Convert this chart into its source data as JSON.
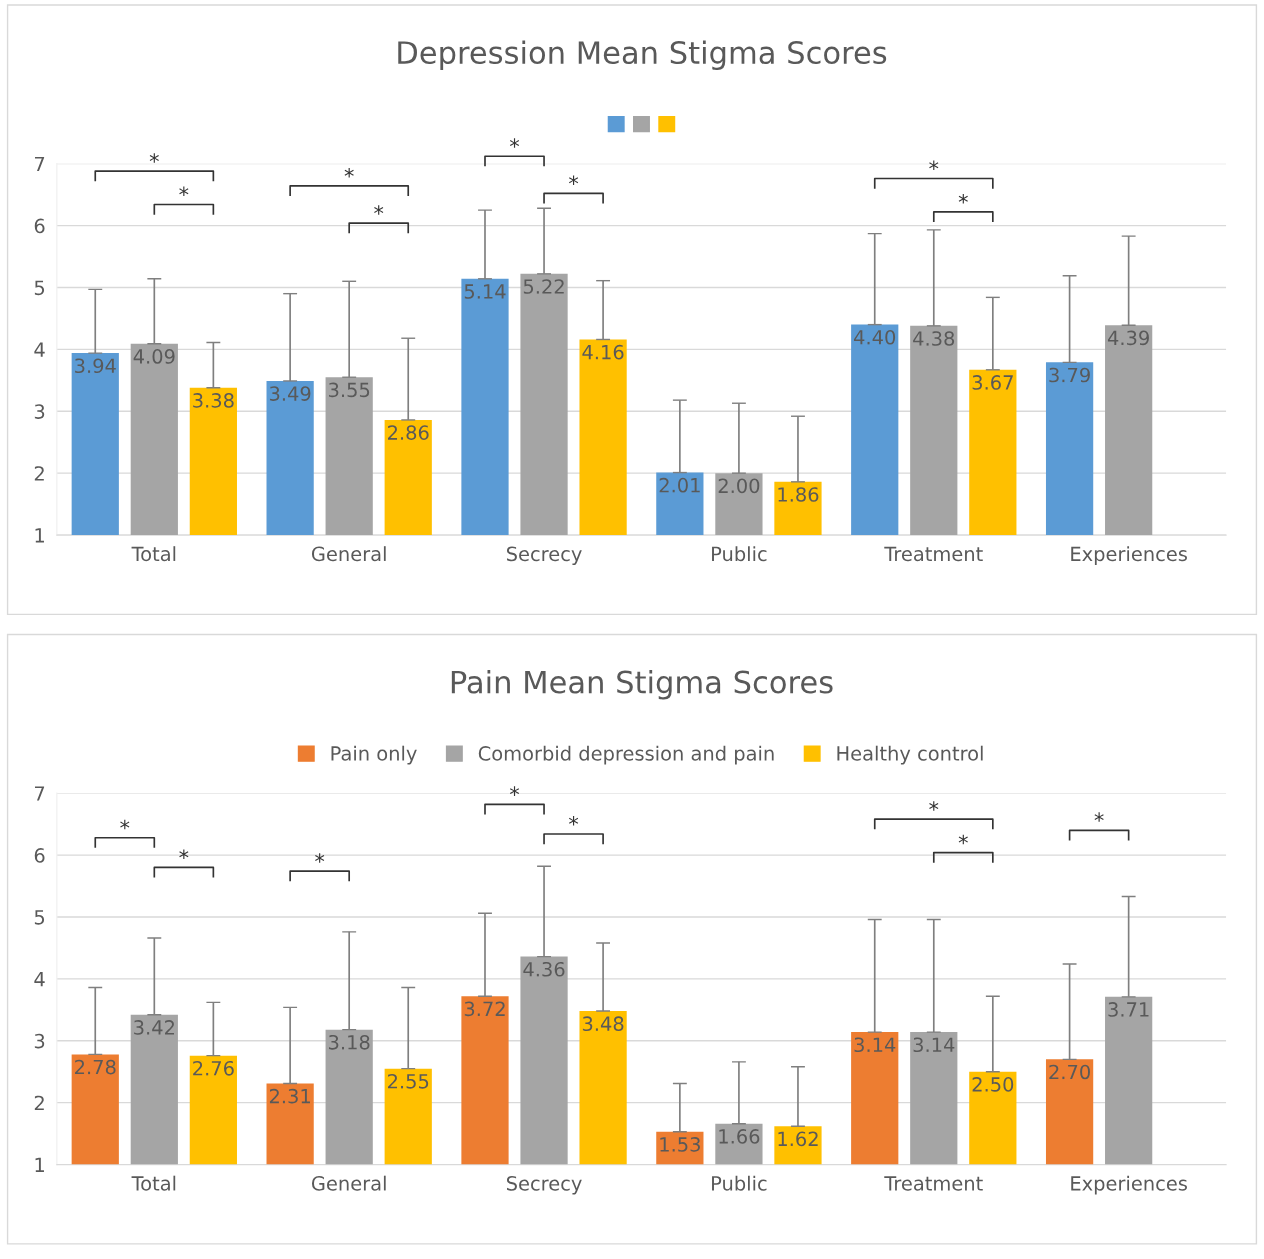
{
  "chart_data": [
    {
      "type": "bar",
      "title": "Depression Mean Stigma Scores",
      "categories": [
        "Total",
        "General",
        "Secrecy",
        "Public",
        "Treatment",
        "Experiences"
      ],
      "series": [
        {
          "color": "#5b9bd5",
          "values": [
            3.94,
            3.49,
            5.14,
            2.01,
            4.4,
            3.79
          ],
          "value_labels": [
            "3.94",
            "3.49",
            "5.14",
            "2.01",
            "4.40",
            "3.79"
          ],
          "errors": [
            1.03,
            1.41,
            1.11,
            1.17,
            1.47,
            1.4
          ]
        },
        {
          "color": "#a5a5a5",
          "values": [
            4.09,
            3.55,
            5.22,
            2.0,
            4.38,
            4.39
          ],
          "value_labels": [
            "4.09",
            "3.55",
            "5.22",
            "2.00",
            "4.38",
            "4.39"
          ],
          "errors": [
            1.05,
            1.55,
            1.06,
            1.13,
            1.55,
            1.44
          ]
        },
        {
          "color": "#ffc000",
          "values": [
            3.38,
            2.86,
            4.16,
            1.86,
            3.67,
            null
          ],
          "value_labels": [
            "3.38",
            "2.86",
            "4.16",
            "1.86",
            "3.67",
            null
          ],
          "errors": [
            0.73,
            1.32,
            0.95,
            1.06,
            1.17,
            null
          ]
        }
      ],
      "ylim": [
        1,
        7
      ],
      "yticks": [
        1,
        2,
        3,
        4,
        5,
        6,
        7
      ],
      "grid": "y",
      "legend": "top",
      "annotations": [
        "*",
        "*",
        "*",
        "*",
        "*",
        "*",
        "*",
        "*"
      ]
    },
    {
      "type": "bar",
      "title": "Pain Mean Stigma Scores",
      "categories": [
        "Total",
        "General",
        "Secrecy",
        "Public",
        "Treatment",
        "Experiences"
      ],
      "series": [
        {
          "name": "Pain only",
          "color": "#ed7d31",
          "values": [
            2.78,
            2.31,
            3.72,
            1.53,
            3.14,
            2.7
          ],
          "value_labels": [
            "2.78",
            "2.31",
            "3.72",
            "1.53",
            "3.14",
            "2.70"
          ],
          "errors": [
            1.08,
            1.23,
            1.34,
            0.78,
            1.82,
            1.54
          ]
        },
        {
          "name": "Comorbid depression and pain",
          "color": "#a5a5a5",
          "values": [
            3.42,
            3.18,
            4.36,
            1.66,
            3.14,
            3.71
          ],
          "value_labels": [
            "3.42",
            "3.18",
            "4.36",
            "1.66",
            "3.14",
            "3.71"
          ],
          "errors": [
            1.24,
            1.58,
            1.46,
            1.0,
            1.82,
            1.62
          ]
        },
        {
          "name": "Healthy control",
          "color": "#ffc000",
          "values": [
            2.76,
            2.55,
            3.48,
            1.62,
            2.5,
            null
          ],
          "value_labels": [
            "2.76",
            "2.55",
            "3.48",
            "1.62",
            "2.50",
            null
          ],
          "errors": [
            0.86,
            1.31,
            1.1,
            0.96,
            1.22,
            null
          ]
        }
      ],
      "ylim": [
        1,
        7
      ],
      "yticks": [
        1,
        2,
        3,
        4,
        5,
        6,
        7
      ],
      "grid": "y",
      "legend": "top",
      "annotations": [
        "*",
        "*",
        "*",
        "*",
        "*",
        "*",
        "*",
        "*"
      ]
    }
  ]
}
